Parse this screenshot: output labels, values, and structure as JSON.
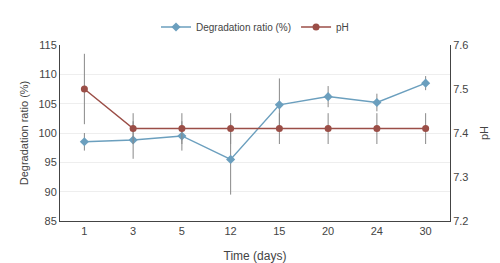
{
  "chart_data": {
    "type": "line",
    "xlabel": "Time (days)",
    "ylabel": "Degradation ratio (%)",
    "y2label": "pH",
    "categories": [
      "1",
      "3",
      "5",
      "12",
      "15",
      "20",
      "24",
      "30"
    ],
    "ylim": [
      85,
      115
    ],
    "yticks": [
      85,
      90,
      95,
      100,
      105,
      110,
      115
    ],
    "y2lim": [
      7.2,
      7.6
    ],
    "y2ticks": [
      7.2,
      7.3,
      7.4,
      7.5,
      7.6
    ],
    "grid": true,
    "legend": "top",
    "series": [
      {
        "name": "Degradation ratio (%)",
        "color": "#6b9fbe",
        "marker": "diamond",
        "values": [
          98.5,
          98.8,
          99.5,
          95.5,
          104.8,
          106.2,
          105.2,
          108.5
        ],
        "errors": [
          1.5,
          3.2,
          2.5,
          6.0,
          4.5,
          1.8,
          1.5,
          1.2
        ]
      },
      {
        "name": "pH",
        "color": "#9b4e47",
        "marker": "circle",
        "axis": "y2",
        "values": [
          7.5,
          7.41,
          7.41,
          7.41,
          7.41,
          7.41,
          7.41,
          7.41
        ],
        "errors": [
          0.08,
          0.035,
          0.035,
          0.035,
          0.035,
          0.035,
          0.035,
          0.035
        ]
      }
    ]
  }
}
